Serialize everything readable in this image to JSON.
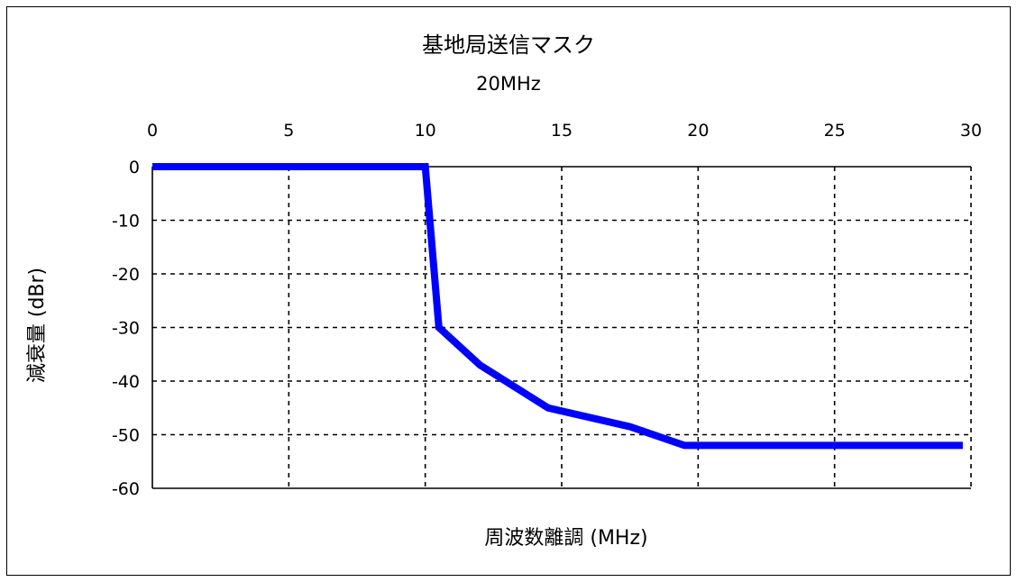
{
  "chart_data": {
    "type": "line",
    "title": "基地局送信マスク",
    "subtitle": "20MHz",
    "xlabel": "周波数離調 (MHz)",
    "ylabel": "減衰量 (dBr)",
    "xlim": [
      0,
      30
    ],
    "ylim": [
      -60,
      0
    ],
    "x_ticks": [
      "0",
      "5",
      "10",
      "15",
      "20",
      "25",
      "30"
    ],
    "y_ticks": [
      "0",
      "-10",
      "-20",
      "-30",
      "-40",
      "-50",
      "-60"
    ],
    "x_axis_position": "top",
    "grid": true,
    "legend": "none",
    "series": [
      {
        "color": "#0000ff",
        "x": [
          0,
          10,
          10.5,
          12,
          14.5,
          17.5,
          19.5,
          29.7
        ],
        "y": [
          0,
          0,
          -30,
          -37,
          -45,
          -48.5,
          -52,
          -52
        ]
      }
    ]
  }
}
